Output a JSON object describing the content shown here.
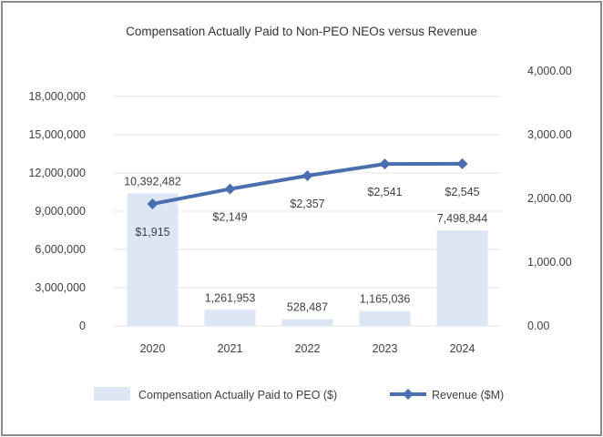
{
  "chart_data": {
    "type": "bar",
    "title": "Compensation Actually Paid to Non-PEO NEOs versus Revenue",
    "categories": [
      "2020",
      "2021",
      "2022",
      "2023",
      "2024"
    ],
    "series": [
      {
        "name": "Compensation Actually Paid to PEO ($)",
        "type": "bar",
        "axis": "left",
        "values": [
          10392482,
          1261953,
          528487,
          1165036,
          7498844
        ],
        "labels": [
          "10,392,482",
          "1,261,953",
          "528,487",
          "1,165,036",
          "7,498,844"
        ],
        "color": "#dce6f4"
      },
      {
        "name": "Revenue ($M)",
        "type": "line",
        "axis": "right",
        "values": [
          1915,
          2149,
          2357,
          2541,
          2545
        ],
        "labels": [
          "$1,915",
          "$2,149",
          "$2,357",
          "$2,541",
          "$2,545"
        ],
        "color": "#4a6fae"
      }
    ],
    "y_left": {
      "min": 0,
      "max": 18000000,
      "ticks": [
        0,
        3000000,
        6000000,
        9000000,
        12000000,
        15000000,
        18000000
      ],
      "tick_labels": [
        "0",
        "3,000,000",
        "6,000,000",
        "9,000,000",
        "12,000,000",
        "15,000,000",
        "18,000,000"
      ]
    },
    "y_right": {
      "min": 0,
      "max": 4000,
      "ticks": [
        0,
        1000,
        2000,
        3000,
        4000
      ],
      "tick_labels": [
        "0.00",
        "1,000.00",
        "2,000.00",
        "3,000.00",
        "4,000.00"
      ]
    },
    "grid": true,
    "legend": "bottom"
  }
}
